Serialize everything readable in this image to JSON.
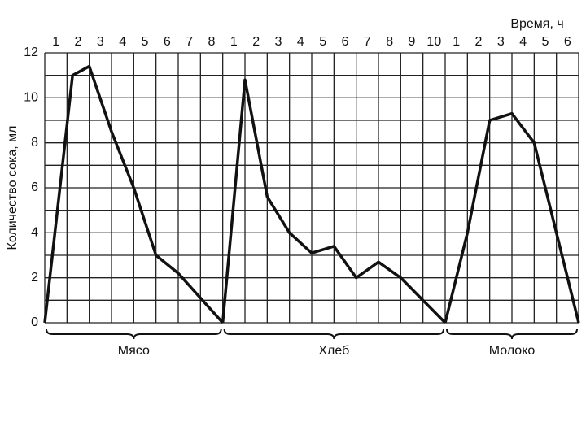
{
  "chart_data": {
    "type": "line",
    "x_label": "Время, ч",
    "y_label": "Количество сока, мл",
    "ylim": [
      0,
      12
    ],
    "yticks": [
      0,
      2,
      4,
      6,
      8,
      10,
      12
    ],
    "grid": true,
    "color": "#111111",
    "series": [
      {
        "name": "Мясо",
        "xlim": [
          0,
          8
        ],
        "xticks": [
          1,
          2,
          3,
          4,
          5,
          6,
          7,
          8
        ],
        "x": [
          0,
          1.25,
          2,
          3,
          4,
          5,
          6,
          8
        ],
        "values": [
          0,
          11,
          11.4,
          8.5,
          6,
          3,
          2.2,
          0
        ]
      },
      {
        "name": "Хлеб",
        "xlim": [
          0,
          10
        ],
        "xticks": [
          1,
          2,
          3,
          4,
          5,
          6,
          7,
          8,
          9,
          10
        ],
        "x": [
          0,
          1,
          2,
          3,
          4,
          5,
          6,
          7,
          8,
          10
        ],
        "values": [
          0,
          10.8,
          5.6,
          4,
          3.1,
          3.4,
          2,
          2.7,
          2,
          0
        ]
      },
      {
        "name": "Молоко",
        "xlim": [
          0,
          6
        ],
        "xticks": [
          1,
          2,
          3,
          4,
          5,
          6
        ],
        "x": [
          0,
          1,
          2,
          3,
          4,
          5,
          6
        ],
        "values": [
          0,
          4,
          9,
          9.3,
          8,
          4,
          0
        ]
      }
    ]
  }
}
